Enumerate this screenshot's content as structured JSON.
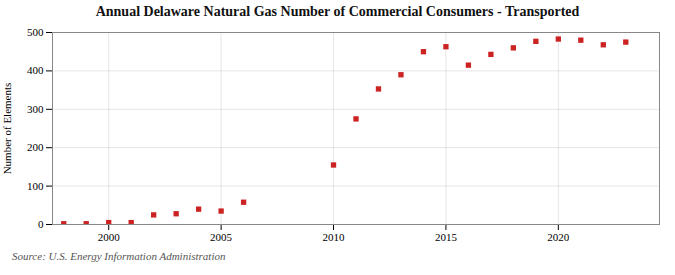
{
  "chart_data": {
    "type": "scatter",
    "title": "Annual Delaware Natural Gas Number of Commercial Consumers - Transported",
    "ylabel": "Number of Elements",
    "source": "Source: U.S. Energy Information Administration",
    "x": [
      1998,
      1999,
      2000,
      2001,
      2002,
      2003,
      2004,
      2005,
      2006,
      2010,
      2011,
      2012,
      2013,
      2014,
      2015,
      2016,
      2017,
      2018,
      2019,
      2020,
      2021,
      2022,
      2023
    ],
    "values": [
      2,
      2,
      5,
      5,
      25,
      28,
      40,
      35,
      58,
      155,
      275,
      353,
      390,
      450,
      463,
      415,
      443,
      460,
      477,
      483,
      480,
      468,
      475
    ],
    "color": "#cc2222",
    "marker": "square",
    "xlim": [
      1997.5,
      2024.5
    ],
    "xticks": [
      2000,
      2005,
      2010,
      2015,
      2020
    ],
    "ylim": [
      0,
      500
    ],
    "yticks": [
      0,
      100,
      200,
      300,
      400,
      500
    ],
    "grid": true
  }
}
